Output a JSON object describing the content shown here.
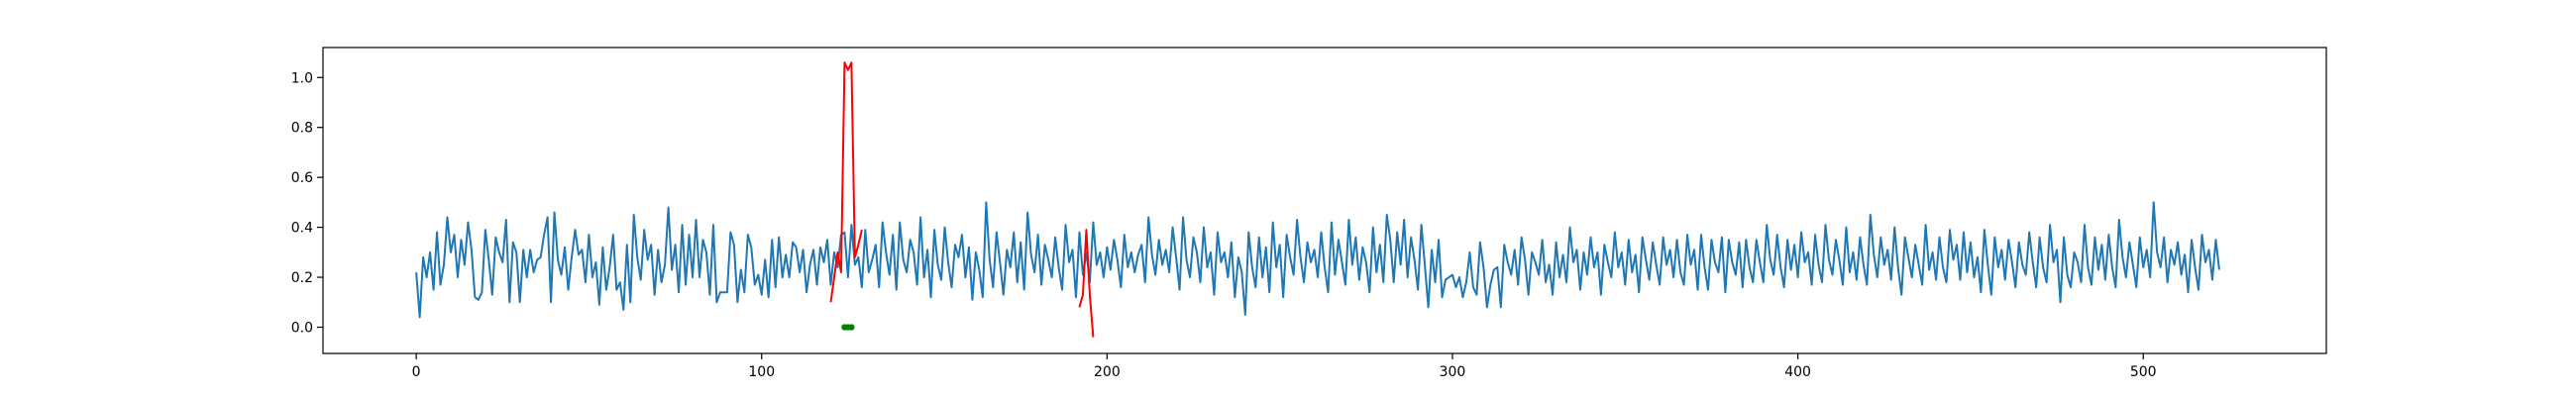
{
  "chart_data": {
    "type": "line",
    "title": "",
    "xlabel": "",
    "ylabel": "",
    "xlim": [
      -27,
      553
    ],
    "ylim": [
      -0.105,
      1.12
    ],
    "grid": false,
    "legend": "none",
    "x_ticks": [
      {
        "value": 0,
        "label": "0"
      },
      {
        "value": 100,
        "label": "100"
      },
      {
        "value": 200,
        "label": "200"
      },
      {
        "value": 300,
        "label": "300"
      },
      {
        "value": 400,
        "label": "400"
      },
      {
        "value": 500,
        "label": "500"
      }
    ],
    "y_ticks": [
      {
        "value": 0.0,
        "label": "0.0"
      },
      {
        "value": 0.2,
        "label": "0.2"
      },
      {
        "value": 0.4,
        "label": "0.4"
      },
      {
        "value": 0.6,
        "label": "0.6"
      },
      {
        "value": 0.8,
        "label": "0.8"
      },
      {
        "value": 1.0,
        "label": "1.0"
      }
    ],
    "series": [
      {
        "style": "line",
        "color": "#1f77b4",
        "x_start": 0,
        "x_step": 1,
        "values": [
          0.22,
          0.04,
          0.28,
          0.2,
          0.3,
          0.15,
          0.38,
          0.17,
          0.25,
          0.44,
          0.3,
          0.37,
          0.2,
          0.35,
          0.25,
          0.42,
          0.31,
          0.12,
          0.11,
          0.14,
          0.39,
          0.27,
          0.13,
          0.36,
          0.3,
          0.26,
          0.43,
          0.1,
          0.34,
          0.3,
          0.1,
          0.31,
          0.2,
          0.31,
          0.22,
          0.27,
          0.28,
          0.37,
          0.44,
          0.1,
          0.46,
          0.27,
          0.21,
          0.32,
          0.15,
          0.28,
          0.39,
          0.29,
          0.31,
          0.18,
          0.37,
          0.2,
          0.26,
          0.09,
          0.32,
          0.15,
          0.24,
          0.37,
          0.15,
          0.18,
          0.07,
          0.33,
          0.1,
          0.45,
          0.28,
          0.19,
          0.39,
          0.27,
          0.33,
          0.13,
          0.31,
          0.18,
          0.25,
          0.48,
          0.23,
          0.33,
          0.14,
          0.41,
          0.17,
          0.37,
          0.2,
          0.43,
          0.2,
          0.35,
          0.3,
          0.13,
          0.41,
          0.1,
          0.14,
          0.14,
          0.14,
          0.38,
          0.33,
          0.1,
          0.23,
          0.14,
          0.37,
          0.32,
          0.17,
          0.21,
          0.13,
          0.27,
          0.12,
          0.35,
          0.16,
          0.36,
          0.2,
          0.29,
          0.2,
          0.34,
          0.32,
          0.22,
          0.31,
          0.14,
          0.25,
          0.31,
          0.17,
          0.32,
          0.26,
          0.35,
          0.17,
          0.3,
          0.24,
          0.37,
          0.38,
          0.2,
          0.41,
          0.25,
          0.28,
          0.16,
          0.39,
          0.22,
          0.27,
          0.33,
          0.16,
          0.42,
          0.3,
          0.21,
          0.37,
          0.15,
          0.42,
          0.27,
          0.22,
          0.35,
          0.3,
          0.17,
          0.44,
          0.2,
          0.31,
          0.12,
          0.39,
          0.25,
          0.19,
          0.4,
          0.26,
          0.16,
          0.33,
          0.28,
          0.37,
          0.2,
          0.32,
          0.11,
          0.3,
          0.23,
          0.12,
          0.5,
          0.27,
          0.16,
          0.38,
          0.26,
          0.13,
          0.31,
          0.24,
          0.38,
          0.18,
          0.34,
          0.15,
          0.46,
          0.29,
          0.22,
          0.37,
          0.17,
          0.33,
          0.27,
          0.2,
          0.36,
          0.24,
          0.15,
          0.41,
          0.26,
          0.31,
          0.12,
          0.38,
          0.21,
          0.3,
          0.18,
          0.42,
          0.25,
          0.3,
          0.2,
          0.32,
          0.23,
          0.35,
          0.27,
          0.16,
          0.37,
          0.24,
          0.3,
          0.22,
          0.29,
          0.33,
          0.18,
          0.44,
          0.29,
          0.21,
          0.35,
          0.25,
          0.31,
          0.22,
          0.4,
          0.28,
          0.15,
          0.44,
          0.27,
          0.2,
          0.36,
          0.3,
          0.18,
          0.4,
          0.24,
          0.3,
          0.13,
          0.38,
          0.26,
          0.3,
          0.2,
          0.34,
          0.12,
          0.28,
          0.22,
          0.05,
          0.38,
          0.24,
          0.16,
          0.36,
          0.2,
          0.32,
          0.14,
          0.42,
          0.24,
          0.33,
          0.12,
          0.37,
          0.28,
          0.21,
          0.43,
          0.28,
          0.18,
          0.34,
          0.26,
          0.31,
          0.2,
          0.38,
          0.24,
          0.14,
          0.42,
          0.21,
          0.35,
          0.26,
          0.17,
          0.43,
          0.25,
          0.36,
          0.19,
          0.32,
          0.26,
          0.14,
          0.4,
          0.22,
          0.33,
          0.18,
          0.45,
          0.35,
          0.18,
          0.38,
          0.25,
          0.43,
          0.2,
          0.36,
          0.27,
          0.15,
          0.41,
          0.25,
          0.08,
          0.31,
          0.18,
          0.35,
          0.12,
          0.19,
          0.2,
          0.21,
          0.16,
          0.2,
          0.12,
          0.18,
          0.3,
          0.16,
          0.13,
          0.34,
          0.24,
          0.08,
          0.17,
          0.23,
          0.24,
          0.08,
          0.33,
          0.26,
          0.21,
          0.31,
          0.17,
          0.36,
          0.27,
          0.13,
          0.3,
          0.26,
          0.21,
          0.35,
          0.18,
          0.25,
          0.13,
          0.34,
          0.2,
          0.29,
          0.18,
          0.4,
          0.26,
          0.31,
          0.15,
          0.3,
          0.21,
          0.36,
          0.24,
          0.3,
          0.13,
          0.33,
          0.26,
          0.2,
          0.38,
          0.24,
          0.3,
          0.17,
          0.35,
          0.22,
          0.29,
          0.14,
          0.36,
          0.27,
          0.19,
          0.34,
          0.25,
          0.17,
          0.36,
          0.25,
          0.31,
          0.2,
          0.35,
          0.22,
          0.17,
          0.37,
          0.25,
          0.31,
          0.15,
          0.37,
          0.24,
          0.15,
          0.35,
          0.26,
          0.22,
          0.36,
          0.14,
          0.35,
          0.26,
          0.21,
          0.34,
          0.16,
          0.35,
          0.24,
          0.18,
          0.35,
          0.26,
          0.18,
          0.41,
          0.27,
          0.21,
          0.37,
          0.24,
          0.16,
          0.35,
          0.23,
          0.33,
          0.2,
          0.38,
          0.26,
          0.3,
          0.17,
          0.37,
          0.25,
          0.18,
          0.41,
          0.27,
          0.21,
          0.35,
          0.27,
          0.17,
          0.4,
          0.22,
          0.3,
          0.19,
          0.36,
          0.25,
          0.17,
          0.45,
          0.29,
          0.2,
          0.36,
          0.25,
          0.31,
          0.19,
          0.4,
          0.24,
          0.13,
          0.36,
          0.28,
          0.2,
          0.33,
          0.25,
          0.17,
          0.41,
          0.23,
          0.3,
          0.19,
          0.36,
          0.24,
          0.18,
          0.39,
          0.27,
          0.33,
          0.19,
          0.38,
          0.22,
          0.34,
          0.2,
          0.28,
          0.14,
          0.39,
          0.25,
          0.13,
          0.36,
          0.24,
          0.31,
          0.19,
          0.35,
          0.26,
          0.16,
          0.34,
          0.25,
          0.21,
          0.38,
          0.26,
          0.16,
          0.36,
          0.24,
          0.18,
          0.41,
          0.26,
          0.31,
          0.1,
          0.36,
          0.21,
          0.16,
          0.3,
          0.26,
          0.18,
          0.41,
          0.24,
          0.17,
          0.36,
          0.23,
          0.33,
          0.19,
          0.37,
          0.24,
          0.16,
          0.43,
          0.28,
          0.2,
          0.34,
          0.25,
          0.16,
          0.36,
          0.24,
          0.31,
          0.2,
          0.5,
          0.3,
          0.24,
          0.36,
          0.18,
          0.31,
          0.25,
          0.34,
          0.21,
          0.29,
          0.14,
          0.35,
          0.24,
          0.15,
          0.37,
          0.26,
          0.31,
          0.19,
          0.35,
          0.23
        ],
        "values_note_skip": true
      },
      {
        "style": "line",
        "color": "#ff0000",
        "x": [
          120,
          121,
          122,
          123,
          124,
          125,
          126,
          127,
          128,
          129
        ],
        "values": [
          0.1,
          0.2,
          0.3,
          0.22,
          1.06,
          1.03,
          1.06,
          0.28,
          0.33,
          0.39
        ]
      },
      {
        "style": "line",
        "color": "#ff0000",
        "x": [
          192,
          193,
          194,
          195,
          196
        ],
        "values": [
          0.08,
          0.13,
          0.39,
          0.13,
          -0.04
        ]
      },
      {
        "style": "markers",
        "color": "#008000",
        "x": [
          124,
          125,
          126
        ],
        "values": [
          0.0,
          0.0,
          0.0
        ]
      }
    ]
  }
}
